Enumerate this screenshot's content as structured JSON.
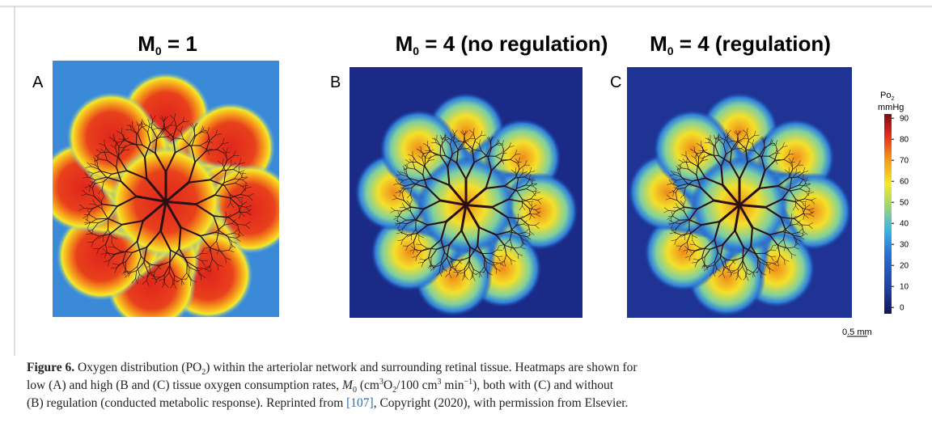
{
  "figure": {
    "panels": [
      {
        "label": "A",
        "title_main": "M",
        "title_sub": "0",
        "title_rest": " = 1"
      },
      {
        "label": "B",
        "title_main": "M",
        "title_sub": "0",
        "title_rest": " = 4 (no regulation)"
      },
      {
        "label": "C",
        "title_main": "M",
        "title_sub": "0",
        "title_rest": " = 4 (regulation)"
      }
    ],
    "colorbar": {
      "label_main": "Po",
      "label_sub": "2",
      "unit": "mmHg",
      "lim": [
        -3,
        92
      ],
      "ticks": [
        0,
        10,
        20,
        30,
        40,
        50,
        60,
        70,
        80,
        90
      ]
    },
    "scale_bar": "0.5 mm"
  },
  "caption": {
    "parts": [
      "Figure 6.",
      " Oxygen distribution (PO",
      "2",
      ") within the arteriolar network and surrounding retinal tissue. Heatmaps are shown for",
      "low (A) and high (B and (C) tissue oxygen consumption rates, ",
      "M",
      "0",
      " (cm",
      "3",
      "O",
      "2",
      "/100 cm",
      "3",
      " min",
      "−1",
      "), both with (C) and without",
      "(B) regulation (conducted metabolic response). Reprinted from ",
      "[107]",
      ", Copyright (2020), with permission from Elsevier."
    ]
  }
}
